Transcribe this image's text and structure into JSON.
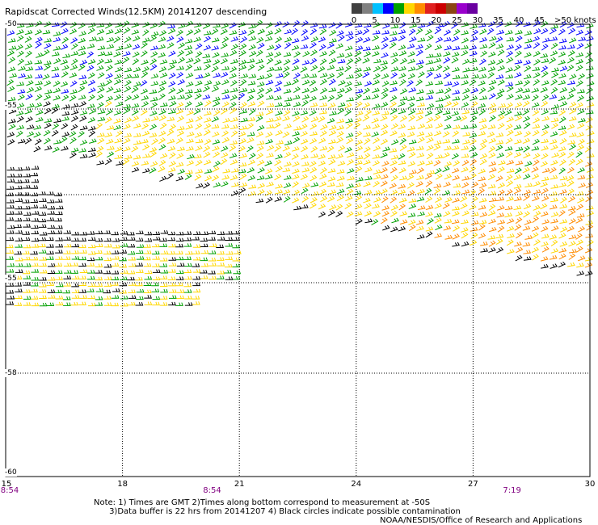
{
  "title": "Rapidscat Corrected Winds(12.5KM) 20141207 descending",
  "colorbar": {
    "colors": [
      "#404040",
      "#808080",
      "#00c0ff",
      "#0000ff",
      "#00a000",
      "#ffd700",
      "#ff8c00",
      "#e02020",
      "#cc0000",
      "#8b4513",
      "#9900cc",
      "#6a00a0"
    ],
    "labels": [
      "0",
      "5",
      "10",
      "15",
      "20",
      "25",
      "30",
      "35",
      "40",
      "45",
      ">50 knots"
    ],
    "label_boundaries": [
      0,
      1,
      2,
      3,
      4,
      5,
      6,
      7,
      8,
      9,
      10
    ],
    "unit": "knots"
  },
  "map": {
    "lat_labels": [
      "-50",
      "-55",
      "-55",
      "-58",
      "-60"
    ],
    "lon_labels": [
      "15",
      "18",
      "21",
      "24",
      "27",
      "30"
    ],
    "lon_values": [
      15,
      18,
      21,
      24,
      27,
      30
    ],
    "lat_range": [
      -60,
      -50
    ],
    "time_labels": [
      {
        "text": "8:54",
        "lon": 15
      },
      {
        "text": "8:54",
        "lon": 20.3
      },
      {
        "text": "7:19",
        "lon": 28
      }
    ]
  },
  "notes": {
    "line1": "Note: 1) Times are GMT 2)Times along bottom correspond to measurement at -50S",
    "line2": "      3)Data buffer is 22 hrs from 20141207 4) Black circles indicate possible contamination"
  },
  "credit": "NOAA/NESDIS/Office of Research and Applications"
}
